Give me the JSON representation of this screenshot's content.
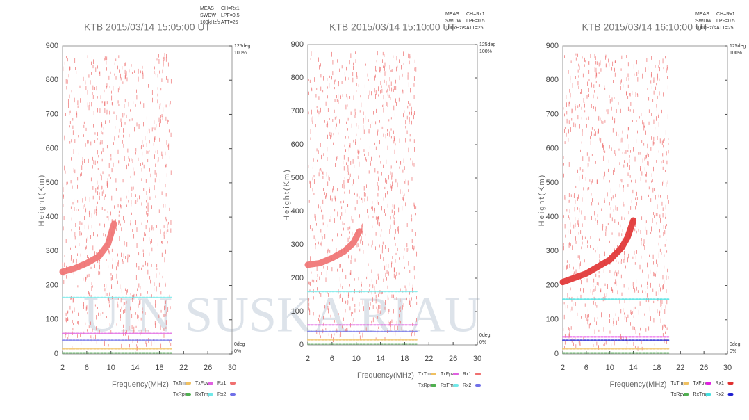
{
  "watermark": "UIN SUSKA RIAU",
  "chart_data": [
    {
      "type": "line",
      "title": "KTB 2015/03/14 15:05:00 UT",
      "xlabel": "Frequency(MHz)",
      "ylabel": "Height(Km)",
      "info": [
        "MEAS",
        "SWDW",
        "100kHz/s"
      ],
      "settings": [
        "CH=Rx1",
        "LPF=0.5",
        "ATT=25"
      ],
      "right_labels": [
        "125deg",
        "100%",
        "0deg",
        "0%"
      ],
      "xlim": [
        2,
        30
      ],
      "ylim": [
        0,
        900
      ],
      "xticks": [
        2,
        6,
        10,
        14,
        18,
        22,
        26,
        30
      ],
      "yticks": [
        0,
        100,
        200,
        300,
        400,
        500,
        600,
        700,
        800,
        900
      ],
      "series": [
        {
          "name": "TxTmp",
          "color": "#f0c060",
          "x": [
            2,
            20
          ],
          "values": [
            15,
            15
          ]
        },
        {
          "name": "TxFpw",
          "color": "#e060e0",
          "x": [
            2,
            20
          ],
          "values": [
            60,
            60
          ]
        },
        {
          "name": "Rx1",
          "color": "#f07070",
          "x": [
            2,
            4,
            6,
            8,
            9.5,
            10.5
          ],
          "values": [
            240,
            250,
            265,
            285,
            320,
            380
          ]
        },
        {
          "name": "TxRpw",
          "color": "#50b050",
          "x": [
            2,
            20
          ],
          "values": [
            3,
            3
          ]
        },
        {
          "name": "RxTmp",
          "color": "#70e8e8",
          "x": [
            2,
            20
          ],
          "values": [
            165,
            165
          ]
        },
        {
          "name": "Rx2",
          "color": "#7070e8",
          "x": [
            2,
            20
          ],
          "values": [
            40,
            40
          ]
        }
      ]
    },
    {
      "type": "line",
      "title": "KTB 2015/03/14 15:10:00 UT",
      "xlabel": "Frequency(MHz)",
      "ylabel": "Height(Km)",
      "info": [
        "MEAS",
        "SWDW",
        "100kHz/s"
      ],
      "settings": [
        "CH=Rx1",
        "LPF=0.5",
        "ATT=25"
      ],
      "right_labels": [
        "125deg",
        "100%",
        "0deg",
        "0%"
      ],
      "xlim": [
        2,
        30
      ],
      "ylim": [
        0,
        900
      ],
      "xticks": [
        2,
        6,
        10,
        14,
        18,
        22,
        26,
        30
      ],
      "yticks": [
        0,
        100,
        200,
        300,
        400,
        500,
        600,
        700,
        800,
        900
      ],
      "series": [
        {
          "name": "TxTmp",
          "color": "#f0c060",
          "x": [
            2,
            20
          ],
          "values": [
            15,
            15
          ]
        },
        {
          "name": "TxFpw",
          "color": "#e060e0",
          "x": [
            2,
            20
          ],
          "values": [
            60,
            60
          ]
        },
        {
          "name": "Rx1",
          "color": "#f07070",
          "x": [
            2,
            4,
            6,
            8,
            9.5,
            10.5
          ],
          "values": [
            240,
            245,
            260,
            280,
            305,
            340
          ]
        },
        {
          "name": "TxRpw",
          "color": "#50b050",
          "x": [
            2,
            20
          ],
          "values": [
            3,
            3
          ]
        },
        {
          "name": "RxTmp",
          "color": "#70e8e8",
          "x": [
            2,
            20
          ],
          "values": [
            160,
            160
          ]
        },
        {
          "name": "Rx2",
          "color": "#7070e8",
          "x": [
            2,
            20
          ],
          "values": [
            40,
            40
          ]
        }
      ]
    },
    {
      "type": "line",
      "title": "KTB 2015/03/14 16:10:00 UT",
      "xlabel": "Frequency(MHz)",
      "ylabel": "Height(Km)",
      "info": [
        "MEAS",
        "SWDW",
        "100kHz/s"
      ],
      "settings": [
        "CH=Rx1",
        "LPF=0.5",
        "ATT=25"
      ],
      "right_labels": [
        "125deg",
        "100%",
        "0deg",
        "0%"
      ],
      "xlim": [
        2,
        30
      ],
      "ylim": [
        0,
        900
      ],
      "xticks": [
        2,
        6,
        10,
        14,
        18,
        22,
        26,
        30
      ],
      "yticks": [
        0,
        100,
        200,
        300,
        400,
        500,
        600,
        700,
        800,
        900
      ],
      "series": [
        {
          "name": "TxTmp",
          "color": "#f0c060",
          "x": [
            2,
            20
          ],
          "values": [
            15,
            15
          ]
        },
        {
          "name": "TxFpw",
          "color": "#e020e0",
          "x": [
            2,
            20
          ],
          "values": [
            50,
            50
          ]
        },
        {
          "name": "Rx1",
          "color": "#e03030",
          "x": [
            2,
            6,
            10,
            12,
            13,
            14
          ],
          "values": [
            210,
            235,
            275,
            310,
            340,
            390
          ]
        },
        {
          "name": "TxRpw",
          "color": "#50b050",
          "x": [
            2,
            20
          ],
          "values": [
            3,
            3
          ]
        },
        {
          "name": "RxTmp",
          "color": "#40e0e0",
          "x": [
            2,
            20
          ],
          "values": [
            160,
            160
          ]
        },
        {
          "name": "Rx2",
          "color": "#2020d0",
          "x": [
            2,
            20
          ],
          "values": [
            40,
            40
          ]
        }
      ]
    }
  ]
}
